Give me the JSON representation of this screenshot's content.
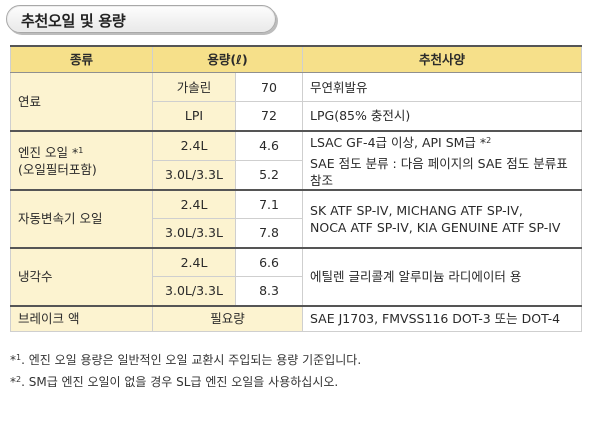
{
  "title": "추천오일 및 용량",
  "table": {
    "headers": {
      "type": "종류",
      "capacity": "용량(ℓ)",
      "recommendation": "추천사양"
    },
    "fuel": {
      "label": "연료",
      "rows": [
        {
          "sub": "가솔린",
          "value": "70",
          "rec": "무연휘발유"
        },
        {
          "sub": "LPI",
          "value": "72",
          "rec": "LPG(85% 충전시)"
        }
      ]
    },
    "engine_oil": {
      "label_line1": "엔진 오일 *",
      "label_sup": "1",
      "label_line2": "(오일필터포함)",
      "rows": [
        {
          "sub": "2.4L",
          "value": "4.6"
        },
        {
          "sub": "3.0L/3.3L",
          "value": "5.2"
        }
      ],
      "rec_line1": "LSAC GF-4급 이상, API SM급 *",
      "rec_sup": "2",
      "rec_line2": "SAE 점도 분류 : 다음 페이지의 SAE 점도 분류표",
      "rec_line3": "참조"
    },
    "transmission": {
      "label": "자동변속기 오일",
      "rows": [
        {
          "sub": "2.4L",
          "value": "7.1"
        },
        {
          "sub": "3.0L/3.3L",
          "value": "7.8"
        }
      ],
      "rec_line1": "SK ATF SP-IV, MICHANG ATF SP-IV,",
      "rec_line2": "NOCA ATF SP-IV, KIA GENUINE ATF SP-IV"
    },
    "coolant": {
      "label": "냉각수",
      "rows": [
        {
          "sub": "2.4L",
          "value": "6.6"
        },
        {
          "sub": "3.0L/3.3L",
          "value": "8.3"
        }
      ],
      "rec": "에틸렌 글리콜계 알루미늄 라디에이터 용"
    },
    "brake": {
      "label": "브레이크 액",
      "capacity": "필요량",
      "rec": "SAE J1703, FMVSS116 DOT-3 또는 DOT-4"
    }
  },
  "footnotes": [
    {
      "mark": "*",
      "num": "1",
      "text": ". 엔진 오일 용량은 일반적인 오일 교환시 주입되는 용량 기준입니다."
    },
    {
      "mark": "*",
      "num": "2",
      "text": ". SM급 엔진 오일이 없을 경우 SL급 엔진 오일을 사용하십시오."
    }
  ]
}
